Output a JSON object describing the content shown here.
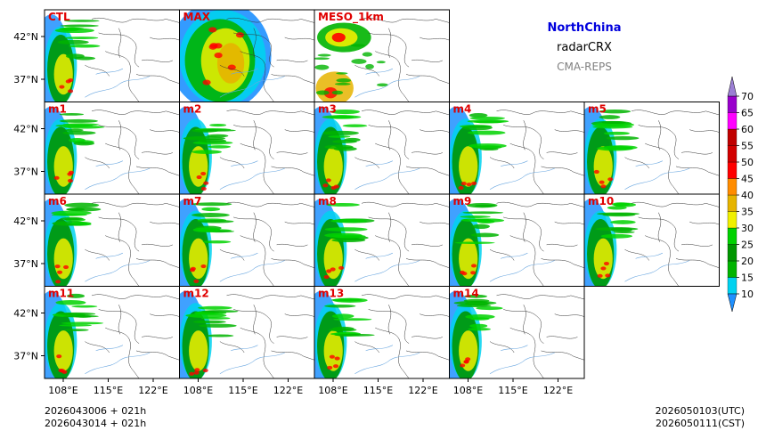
{
  "header": {
    "region": "NorthChina",
    "product": "radarCRX",
    "system": "CMA-REPS"
  },
  "panels": [
    {
      "label": "CTL",
      "row": 0,
      "col": 0,
      "field": "radar"
    },
    {
      "label": "MAX",
      "row": 0,
      "col": 1,
      "field": "max"
    },
    {
      "label": "MESO_1km",
      "row": 0,
      "col": 2,
      "field": "meso"
    },
    {
      "label": "m1",
      "row": 1,
      "col": 0,
      "field": "radar"
    },
    {
      "label": "m2",
      "row": 1,
      "col": 1,
      "field": "radar"
    },
    {
      "label": "m3",
      "row": 1,
      "col": 2,
      "field": "radar"
    },
    {
      "label": "m4",
      "row": 1,
      "col": 3,
      "field": "radar"
    },
    {
      "label": "m5",
      "row": 1,
      "col": 4,
      "field": "radar"
    },
    {
      "label": "m6",
      "row": 2,
      "col": 0,
      "field": "radar"
    },
    {
      "label": "m7",
      "row": 2,
      "col": 1,
      "field": "radar"
    },
    {
      "label": "m8",
      "row": 2,
      "col": 2,
      "field": "radar"
    },
    {
      "label": "m9",
      "row": 2,
      "col": 3,
      "field": "radar"
    },
    {
      "label": "m10",
      "row": 2,
      "col": 4,
      "field": "radar"
    },
    {
      "label": "m11",
      "row": 3,
      "col": 0,
      "field": "radar"
    },
    {
      "label": "m12",
      "row": 3,
      "col": 1,
      "field": "radar"
    },
    {
      "label": "m13",
      "row": 3,
      "col": 2,
      "field": "radar"
    },
    {
      "label": "m14",
      "row": 3,
      "col": 3,
      "field": "radar"
    }
  ],
  "axes": {
    "lat_ticks": [
      "42°N",
      "37°N"
    ],
    "lon_ticks": [
      "108°E",
      "115°E",
      "122°E"
    ]
  },
  "colorbar": {
    "levels": [
      10,
      15,
      20,
      25,
      30,
      35,
      40,
      45,
      50,
      55,
      60,
      65,
      70
    ],
    "colors": [
      "#1e90ff",
      "#00d2f0",
      "#00b400",
      "#009600",
      "#00d200",
      "#f0f000",
      "#e6b400",
      "#ff8c00",
      "#ff0000",
      "#d20000",
      "#c00000",
      "#ff00ff",
      "#9900cc",
      "#9b7fd4"
    ]
  },
  "footer": {
    "init_utc": "2026043006  +  021h",
    "init_cst": "2026043014  +  021h",
    "valid_utc": "2026050103(UTC)",
    "valid_cst": "2026050111(CST)"
  }
}
